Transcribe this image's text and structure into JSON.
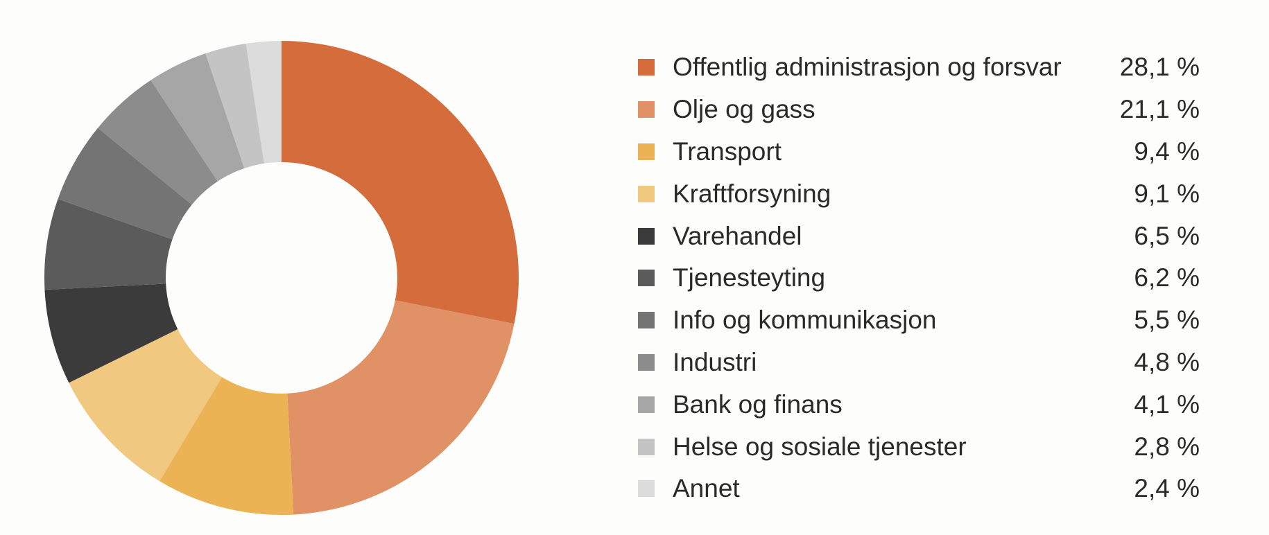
{
  "chart_data": {
    "type": "pie",
    "donut": true,
    "legend_position": "right",
    "slices": [
      {
        "label": "Offentlig administrasjon og forsvar",
        "value": 28.1,
        "value_label": "28,1 %",
        "color": "#d56c3b"
      },
      {
        "label": "Olje og gass",
        "value": 21.1,
        "value_label": "21,1 %",
        "color": "#e09165"
      },
      {
        "label": "Transport",
        "value": 9.4,
        "value_label": "9,4 %",
        "color": "#ebb353"
      },
      {
        "label": "Kraftforsyning",
        "value": 9.1,
        "value_label": "9,1 %",
        "color": "#f0c880"
      },
      {
        "label": "Varehandel",
        "value": 6.5,
        "value_label": "6,5 %",
        "color": "#3b3b3b"
      },
      {
        "label": "Tjenesteyting",
        "value": 6.2,
        "value_label": "6,2 %",
        "color": "#5b5b5b"
      },
      {
        "label": "Info og kommunikasjon",
        "value": 5.5,
        "value_label": "5,5 %",
        "color": "#747474"
      },
      {
        "label": "Industri",
        "value": 4.8,
        "value_label": "4,8 %",
        "color": "#8c8c8c"
      },
      {
        "label": "Bank og finans",
        "value": 4.1,
        "value_label": "4,1 %",
        "color": "#a6a6a6"
      },
      {
        "label": "Helse og sosiale tjenester",
        "value": 2.8,
        "value_label": "2,8 %",
        "color": "#c4c4c4"
      },
      {
        "label": "Annet",
        "value": 2.4,
        "value_label": "2,4 %",
        "color": "#dcdcdc"
      }
    ]
  }
}
